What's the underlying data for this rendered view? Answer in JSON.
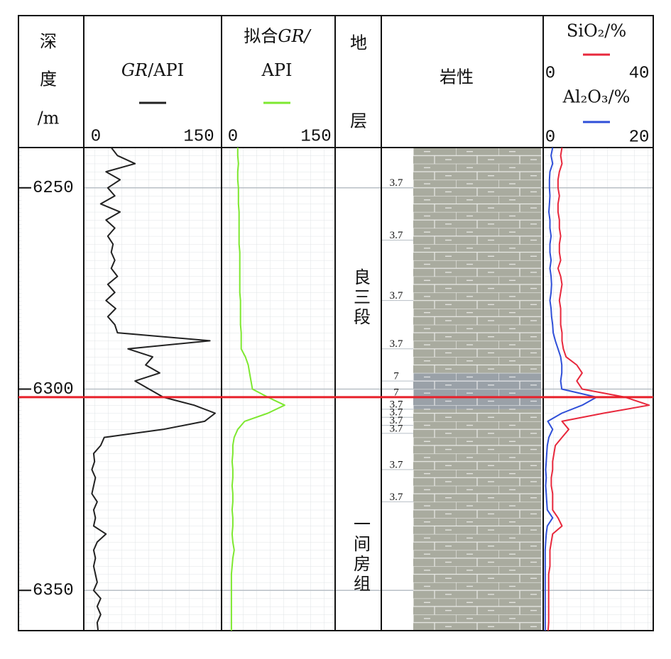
{
  "chart_data": {
    "type": "well-log",
    "depth_header": [
      "深",
      "度",
      "/m"
    ],
    "ylim": [
      6240,
      6360
    ],
    "yticks": [
      6250,
      6300,
      6350
    ],
    "depth": [
      6240,
      6242,
      6244,
      6246,
      6248,
      6250,
      6252,
      6254,
      6256,
      6258,
      6260,
      6262,
      6264,
      6266,
      6268,
      6270,
      6272,
      6274,
      6276,
      6278,
      6280,
      6282,
      6284,
      6286,
      6288,
      6290,
      6292,
      6294,
      6296,
      6298,
      6300,
      6302,
      6304,
      6306,
      6308,
      6310,
      6312,
      6314,
      6316,
      6318,
      6320,
      6322,
      6324,
      6326,
      6328,
      6330,
      6332,
      6334,
      6336,
      6338,
      6340,
      6342,
      6344,
      6346,
      6348,
      6350,
      6352,
      6354,
      6356,
      6358,
      6360
    ],
    "tracks": [
      {
        "label_lines": [
          [
            {
              "text": "GR",
              "italic": true
            },
            {
              "text": "/API"
            }
          ]
        ],
        "series": [
          {
            "color": "#222222",
            "xlim": [
              0,
              150
            ],
            "xticks": [
              0,
              150
            ],
            "values": [
              28,
              35,
              55,
              22,
              38,
              24,
              32,
              16,
              38,
              22,
              32,
              24,
              30,
              28,
              32,
              28,
              35,
              24,
              32,
              22,
              33,
              24,
              32,
              35,
              140,
              47,
              75,
              67,
              83,
              55,
              71,
              87,
              122,
              146,
              134,
              87,
              20,
              16,
              8,
              9,
              6,
              10,
              8,
              6,
              12,
              8,
              10,
              8,
              22,
              12,
              8,
              10,
              8,
              10,
              12,
              8,
              16,
              12,
              16,
              12,
              13
            ]
          }
        ]
      },
      {
        "label_lines": [
          [
            {
              "text": "拟合"
            },
            {
              "text": "GR/",
              "italic": true
            }
          ],
          [
            {
              "text": "API"
            }
          ]
        ],
        "series": [
          {
            "color": "#7ee830",
            "xlim": [
              0,
              150
            ],
            "xticks": [
              0,
              150
            ],
            "values": [
              17,
              17,
              18,
              17,
              17,
              18,
              18,
              18,
              19,
              19,
              19,
              19,
              19,
              20,
              20,
              20,
              20,
              20,
              20,
              21,
              21,
              21,
              21,
              22,
              22,
              22,
              28,
              32,
              34,
              36,
              38,
              60,
              84,
              60,
              27,
              17,
              12,
              10,
              10,
              9,
              10,
              10,
              9,
              10,
              10,
              9,
              10,
              10,
              9,
              10,
              12,
              10,
              9,
              8,
              8,
              8,
              8,
              8,
              8,
              8,
              8
            ]
          }
        ]
      },
      {
        "series": [
          {
            "name": "SiO₂/%",
            "color": "#e8283c",
            "xlim": [
              0,
              40
            ],
            "xticks": [
              0,
              40
            ],
            "values": [
              6.5,
              6,
              6.5,
              5.5,
              5,
              5,
              5.5,
              5,
              5,
              5.5,
              5.5,
              6,
              5.5,
              5.5,
              6,
              5,
              6,
              6.5,
              6,
              5.5,
              6,
              6,
              6,
              6.5,
              6.5,
              7,
              8,
              12,
              14,
              12,
              14,
              30,
              39,
              22,
              6.5,
              9,
              6.5,
              4,
              3.5,
              3,
              3,
              2.5,
              2.5,
              3,
              3,
              3,
              5,
              6.5,
              3,
              2.5,
              2,
              2,
              2,
              1.5,
              1.5,
              1.5,
              1.5,
              1.5,
              1.5,
              1.5,
              1.3
            ]
          },
          {
            "name": "Al₂O₃/%",
            "color": "#2f4fd8",
            "xlim": [
              0,
              20
            ],
            "xticks": [
              0,
              20
            ],
            "values": [
              1.5,
              1.2,
              1.5,
              1,
              0.9,
              0.9,
              1,
              0.9,
              0.8,
              1,
              1,
              1.2,
              1,
              1,
              1.2,
              1,
              1.2,
              1.3,
              1.2,
              1,
              1.2,
              1.3,
              1.5,
              1.6,
              2,
              2.5,
              3,
              3.2,
              3.2,
              3,
              3.2,
              9.7,
              7,
              3.2,
              0.6,
              1.5,
              0.8,
              0.5,
              0.4,
              0.3,
              0.2,
              0.3,
              0.2,
              0.3,
              0.4,
              0.5,
              1.5,
              0.5,
              0.3,
              0.2,
              0.1,
              0.1,
              0.1,
              0.1,
              0.1,
              0.1,
              0.1,
              0.1,
              0.1,
              0.1,
              0.1
            ]
          }
        ]
      }
    ],
    "strata_header": [
      "地",
      "层"
    ],
    "formations": [
      {
        "name": "良三段",
        "top": 6240,
        "bottom": 6302
      },
      {
        "name": "一间房组",
        "top": 6302,
        "bottom": 6360
      }
    ],
    "boundary_depth": 6302,
    "lithology": {
      "header": "岩性",
      "intervals": [
        {
          "top": 6240,
          "bottom": 6296,
          "color": "#a9ab9f"
        },
        {
          "top": 6296,
          "bottom": 6305,
          "color": "#9aa1a8"
        },
        {
          "top": 6305,
          "bottom": 6360,
          "color": "#a9ab9f"
        }
      ],
      "codes": [
        {
          "depth": 6250,
          "code": "3.7"
        },
        {
          "depth": 6263,
          "code": "3.7"
        },
        {
          "depth": 6278,
          "code": "3.7"
        },
        {
          "depth": 6290,
          "code": "3.7"
        },
        {
          "depth": 6298,
          "code": "7"
        },
        {
          "depth": 6302,
          "code": "7"
        },
        {
          "depth": 6305,
          "code": "3.7"
        },
        {
          "depth": 6307,
          "code": "3.7"
        },
        {
          "depth": 6309,
          "code": "3.7"
        },
        {
          "depth": 6311,
          "code": "3.7"
        },
        {
          "depth": 6320,
          "code": "3.7"
        },
        {
          "depth": 6328,
          "code": "3.7"
        }
      ]
    }
  }
}
